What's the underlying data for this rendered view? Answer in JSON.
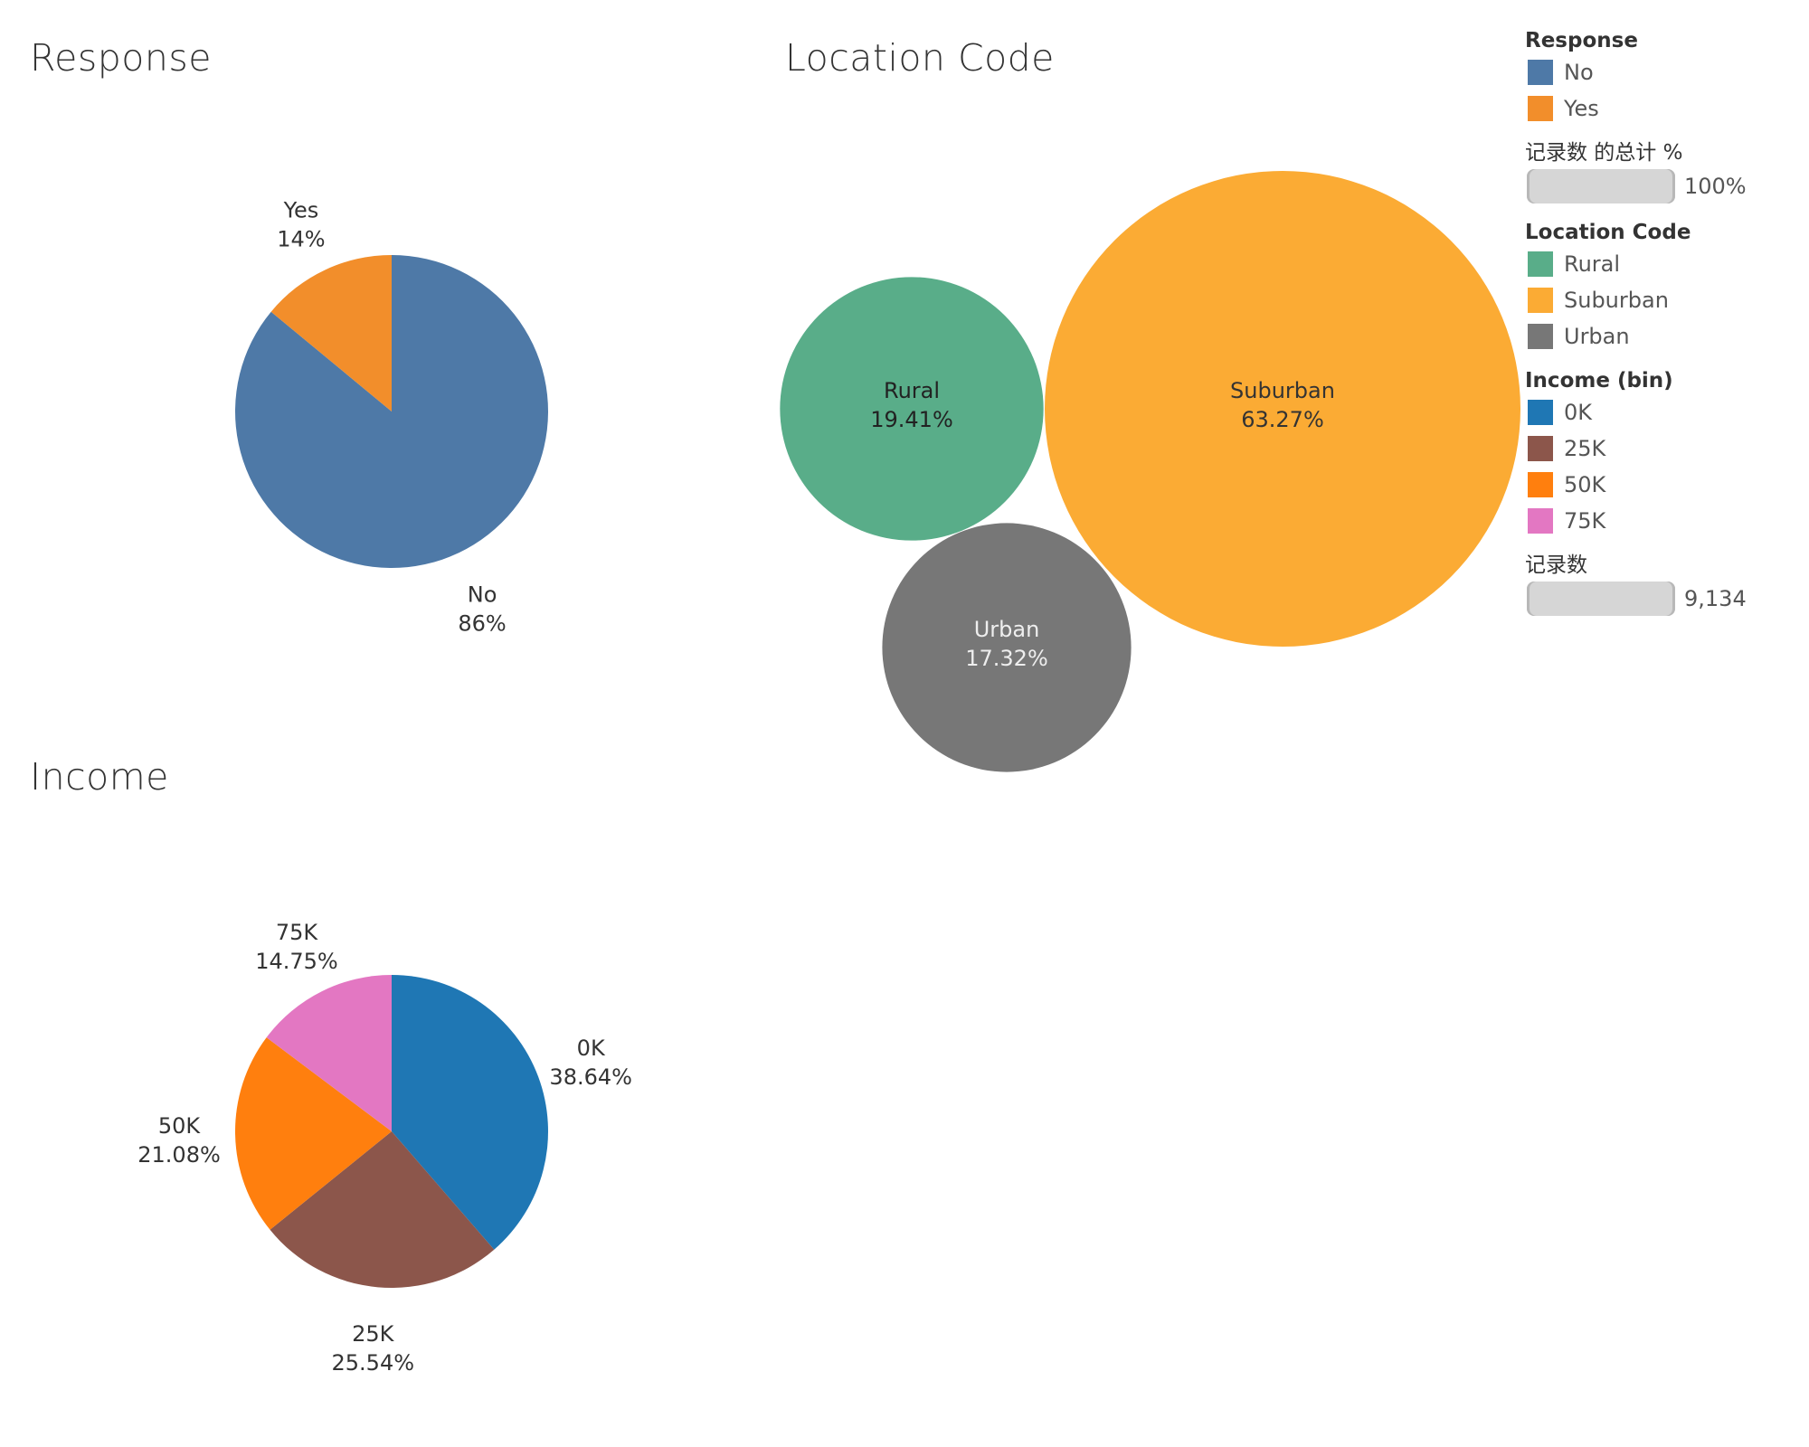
{
  "panels": {
    "response_title": "Response",
    "location_title": "Location Code",
    "income_title": "Income"
  },
  "legend": {
    "response": {
      "title": "Response",
      "items": [
        {
          "label": "No",
          "color": "#4e79a7"
        },
        {
          "label": "Yes",
          "color": "#f28e2b"
        }
      ]
    },
    "percent_total": {
      "title": "记录数 的总计 %",
      "value_label": "100%"
    },
    "location": {
      "title": "Location Code",
      "items": [
        {
          "label": "Rural",
          "color": "#59ad89"
        },
        {
          "label": "Suburban",
          "color": "#fbab34"
        },
        {
          "label": "Urban",
          "color": "#777777"
        }
      ]
    },
    "income": {
      "title": "Income (bin)",
      "items": [
        {
          "label": "0K",
          "color": "#1f77b4"
        },
        {
          "label": "25K",
          "color": "#8c564b"
        },
        {
          "label": "50K",
          "color": "#ff7f0e"
        },
        {
          "label": "75K",
          "color": "#e377c2"
        }
      ]
    },
    "record_count": {
      "title": "记录数",
      "value_label": "9,134"
    }
  },
  "chart_data": [
    {
      "type": "pie",
      "title": "Response",
      "slices": [
        {
          "label": "No",
          "value": 86,
          "display": "86%",
          "color": "#4e79a7"
        },
        {
          "label": "Yes",
          "value": 14,
          "display": "14%",
          "color": "#f28e2b"
        }
      ]
    },
    {
      "type": "bubble",
      "title": "Location Code",
      "bubbles": [
        {
          "label": "Rural",
          "value": 19.41,
          "display": "19.41%",
          "color": "#59ad89"
        },
        {
          "label": "Suburban",
          "value": 63.27,
          "display": "63.27%",
          "color": "#fbab34"
        },
        {
          "label": "Urban",
          "value": 17.32,
          "display": "17.32%",
          "color": "#777777"
        }
      ]
    },
    {
      "type": "pie",
      "title": "Income",
      "slices": [
        {
          "label": "0K",
          "value": 38.64,
          "display": "38.64%",
          "color": "#1f77b4"
        },
        {
          "label": "25K",
          "value": 25.54,
          "display": "25.54%",
          "color": "#8c564b"
        },
        {
          "label": "50K",
          "value": 21.08,
          "display": "21.08%",
          "color": "#ff7f0e"
        },
        {
          "label": "75K",
          "value": 14.75,
          "display": "14.75%",
          "color": "#e377c2"
        }
      ]
    }
  ]
}
